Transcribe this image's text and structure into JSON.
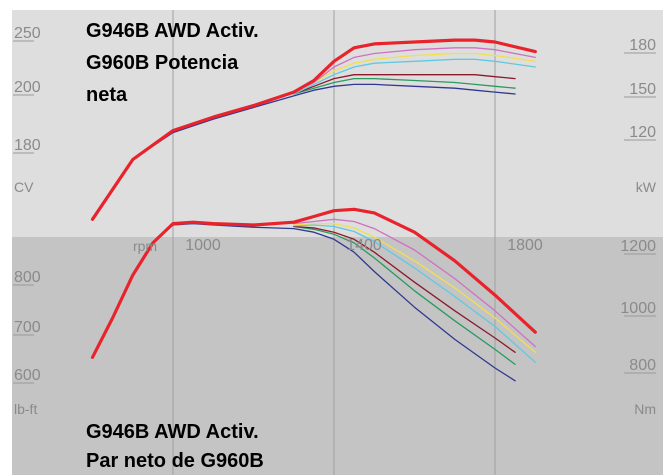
{
  "chart_data": [
    {
      "type": "line",
      "title": [
        "G946B AWD Activ.",
        "G960B Potencia",
        "neta"
      ],
      "x_unit": "rpm",
      "y_left_unit": "CV",
      "y_right_unit": "kW",
      "y_left_ticks": [
        180,
        200,
        250
      ],
      "y_right_ticks": [
        120,
        150,
        180
      ],
      "y_range_cv": [
        150,
        260
      ],
      "x_range": [
        750,
        1900
      ],
      "grid_x": [
        1000,
        1400,
        1800
      ],
      "colors": [
        "#e8232b",
        "#d070c0",
        "#f0e050",
        "#60c8e0",
        "#8b1a2a",
        "#2a9a60",
        "#303890"
      ],
      "series": [
        {
          "color": "#e8232b",
          "x": [
            800,
            900,
            1000,
            1100,
            1200,
            1300,
            1350,
            1400,
            1450,
            1500,
            1600,
            1700,
            1750,
            1800,
            1900
          ],
          "y": [
            154,
            185,
            200,
            207,
            213,
            220,
            226,
            236,
            243,
            245,
            246,
            247,
            247,
            246,
            241
          ]
        },
        {
          "color": "#d070c0",
          "x": [
            1300,
            1350,
            1400,
            1450,
            1500,
            1600,
            1700,
            1750,
            1800,
            1900
          ],
          "y": [
            220,
            225,
            233,
            238,
            240,
            242,
            243,
            243,
            242,
            238
          ]
        },
        {
          "color": "#f0e050",
          "x": [
            1300,
            1350,
            1400,
            1450,
            1500,
            1600,
            1700,
            1750,
            1800,
            1900
          ],
          "y": [
            220,
            225,
            231,
            235,
            237,
            239,
            240,
            240,
            239,
            236
          ]
        },
        {
          "color": "#60c8e0",
          "x": [
            1300,
            1350,
            1400,
            1450,
            1500,
            1600,
            1700,
            1750,
            1800,
            1900
          ],
          "y": [
            219,
            224,
            229,
            233,
            235,
            236,
            237,
            237,
            236,
            233
          ]
        },
        {
          "color": "#8b1a2a",
          "x": [
            1300,
            1350,
            1400,
            1450,
            1500,
            1600,
            1700,
            1750,
            1800,
            1850
          ],
          "y": [
            219,
            223,
            227,
            229,
            229,
            229,
            229,
            229,
            228,
            227
          ]
        },
        {
          "color": "#2a9a60",
          "x": [
            1300,
            1350,
            1400,
            1450,
            1500,
            1600,
            1700,
            1750,
            1800,
            1850
          ],
          "y": [
            219,
            222,
            225,
            227,
            227,
            226,
            225,
            224,
            223,
            222
          ]
        },
        {
          "color": "#303890",
          "x": [
            800,
            900,
            1000,
            1100,
            1200,
            1300,
            1350,
            1400,
            1450,
            1500,
            1600,
            1700,
            1750,
            1800,
            1850
          ],
          "y": [
            154,
            185,
            199,
            206,
            212,
            218,
            221,
            223,
            224,
            224,
            223,
            222,
            221,
            220,
            219
          ]
        }
      ]
    },
    {
      "type": "line",
      "title": [
        "G946B AWD Activ.",
        "Par neto de G960B"
      ],
      "x_unit": "rpm",
      "x_ticks": [
        1000,
        1400,
        1800
      ],
      "y_left_unit": "lb-ft",
      "y_right_unit": "Nm",
      "y_left_ticks": [
        600,
        700,
        800
      ],
      "y_right_ticks": [
        800,
        1000,
        1200
      ],
      "y_range_lbft": [
        575,
        880
      ],
      "x_range": [
        750,
        1900
      ],
      "grid_x": [
        1000,
        1400,
        1800
      ],
      "colors": [
        "#e8232b",
        "#d070c0",
        "#f0e050",
        "#60c8e0",
        "#8b1a2a",
        "#2a9a60",
        "#303890"
      ],
      "series": [
        {
          "color": "#e8232b",
          "x": [
            800,
            850,
            900,
            950,
            1000,
            1050,
            1100,
            1200,
            1300,
            1350,
            1400,
            1450,
            1500,
            1600,
            1700,
            1800,
            1900
          ],
          "y": [
            625,
            680,
            740,
            785,
            812,
            814,
            812,
            810,
            814,
            822,
            830,
            832,
            827,
            800,
            760,
            712,
            660
          ]
        },
        {
          "color": "#d070c0",
          "x": [
            1300,
            1350,
            1400,
            1450,
            1500,
            1600,
            1700,
            1800,
            1900
          ],
          "y": [
            812,
            815,
            818,
            815,
            805,
            775,
            735,
            690,
            640
          ]
        },
        {
          "color": "#f0e050",
          "x": [
            1300,
            1350,
            1400,
            1450,
            1500,
            1600,
            1700,
            1800,
            1900
          ],
          "y": [
            810,
            812,
            812,
            806,
            793,
            760,
            722,
            680,
            632
          ]
        },
        {
          "color": "#60c8e0",
          "x": [
            1300,
            1350,
            1400,
            1450,
            1500,
            1600,
            1700,
            1800,
            1900
          ],
          "y": [
            809,
            810,
            808,
            801,
            787,
            750,
            710,
            668,
            618
          ]
        },
        {
          "color": "#8b1a2a",
          "x": [
            1300,
            1350,
            1400,
            1450,
            1500,
            1600,
            1700,
            1800,
            1850
          ],
          "y": [
            808,
            806,
            800,
            790,
            772,
            730,
            690,
            652,
            632
          ]
        },
        {
          "color": "#2a9a60",
          "x": [
            1300,
            1350,
            1400,
            1450,
            1500,
            1600,
            1700,
            1800,
            1850
          ],
          "y": [
            808,
            804,
            797,
            785,
            764,
            718,
            676,
            636,
            615
          ]
        },
        {
          "color": "#303890",
          "x": [
            800,
            850,
            900,
            950,
            1000,
            1050,
            1100,
            1200,
            1300,
            1350,
            1400,
            1450,
            1500,
            1600,
            1700,
            1800,
            1850
          ],
          "y": [
            625,
            680,
            740,
            785,
            810,
            812,
            810,
            807,
            805,
            800,
            790,
            772,
            745,
            695,
            650,
            610,
            592
          ]
        }
      ]
    }
  ]
}
